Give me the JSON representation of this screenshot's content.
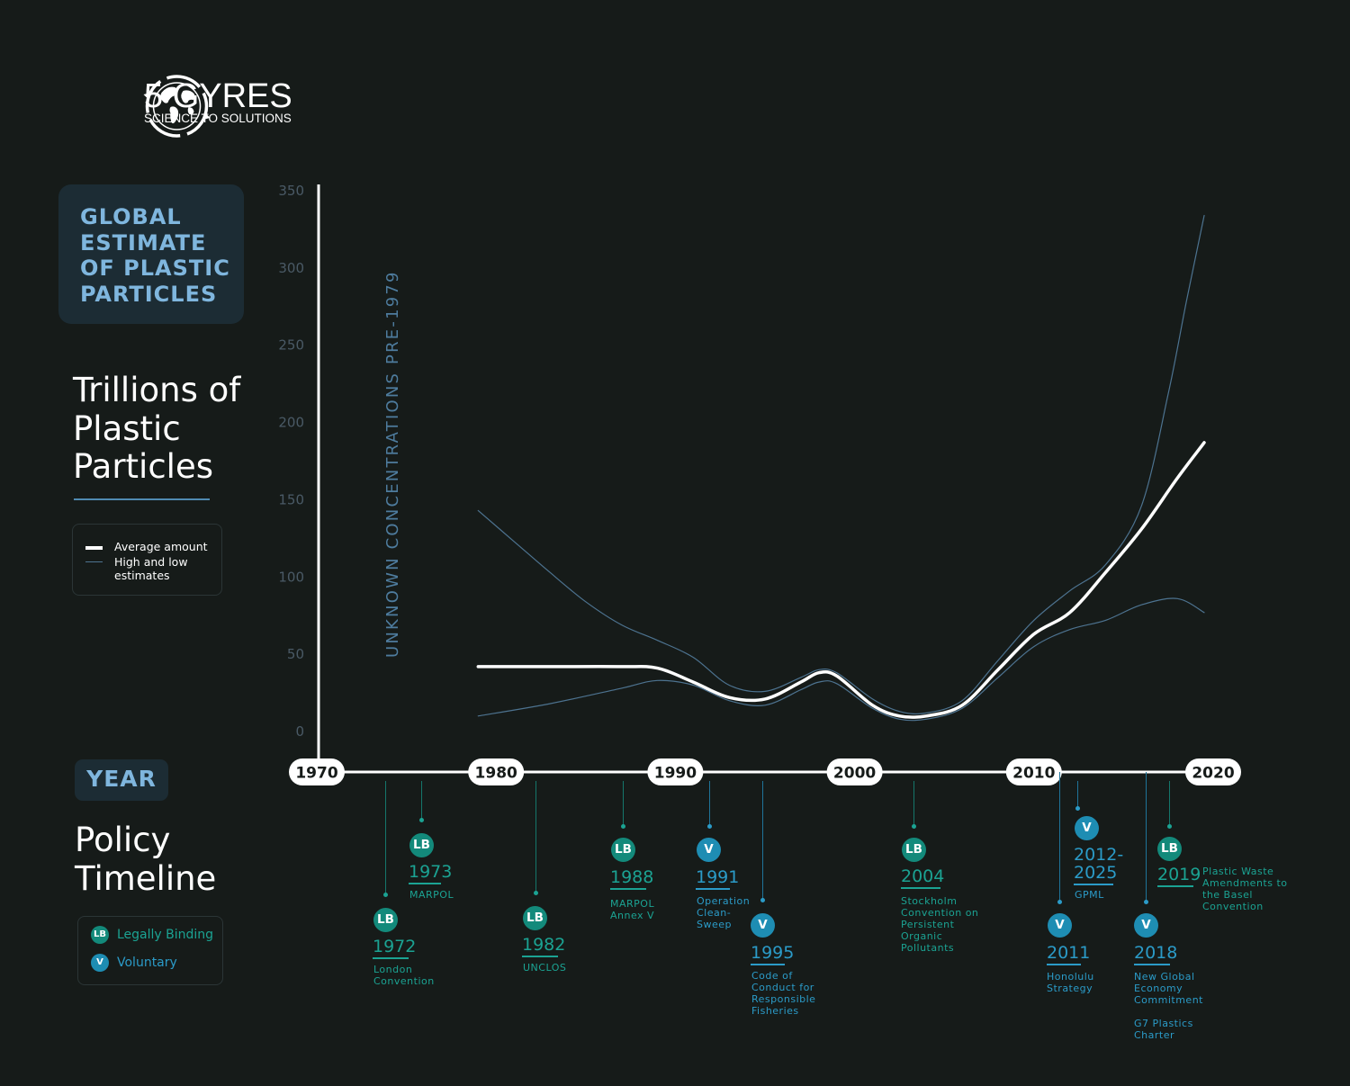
{
  "logo": {
    "icon": "globe-arrows-icon",
    "name": "5 GYRES",
    "tagline": "SCIENCE TO SOLUTIONS"
  },
  "sidebar": {
    "estimate_title": "GLOBAL ESTIMATE OF PLASTIC PARTICLES",
    "units_title": "Trillions of Plastic Particles",
    "year_label": "YEAR",
    "policy_title": "Policy Timeline",
    "chart_legend": {
      "average": "Average amount",
      "high_low": "High and low estimates"
    },
    "policy_legend": [
      {
        "badge": "LB",
        "label": "Legally Binding",
        "color": "#1ba393"
      },
      {
        "badge": "V",
        "label": "Voluntary",
        "color": "#2b9bc8"
      }
    ]
  },
  "chart_data": {
    "type": "line",
    "title": "GLOBAL ESTIMATE OF PLASTIC PARTICLES",
    "ylabel": "Trillions of Plastic Particles",
    "xlabel": "YEAR",
    "xlim": [
      1970,
      2020
    ],
    "ylim": [
      0,
      350
    ],
    "y_ticks": [
      0,
      50,
      100,
      150,
      200,
      250,
      300,
      350
    ],
    "x_ticks": [
      1970,
      1980,
      1990,
      2000,
      2010,
      2020
    ],
    "annotation": "UNKNOWN CONCENTRATIONS PRE-1979",
    "legend_position": "left",
    "grid": false,
    "series": [
      {
        "name": "Average amount",
        "role": "average",
        "color": "#ffffff",
        "x": [
          1979,
          1983,
          1987,
          1989,
          1991,
          1993,
          1995,
          1997,
          1998,
          1999,
          2001,
          2002.5,
          2004,
          2006,
          2008,
          2010,
          2012,
          2014,
          2016,
          2018,
          2019.5
        ],
        "y": [
          42,
          42,
          42,
          41,
          32,
          22,
          21,
          32,
          38,
          36,
          17,
          10,
          10,
          17,
          40,
          63,
          77,
          103,
          131,
          164,
          187
        ]
      },
      {
        "name": "High and low estimates",
        "role": "high",
        "color": "#4d7390",
        "x": [
          1979,
          1981,
          1983,
          1985,
          1987,
          1989,
          1991,
          1993,
          1995,
          1997,
          1998,
          1999,
          2001,
          2002.5,
          2004,
          2006,
          2008,
          2010,
          2012,
          2014,
          2016,
          2017.5,
          2018.5,
          2019.5
        ],
        "y": [
          143,
          123,
          103,
          84,
          69,
          59,
          48,
          30,
          26,
          35,
          40,
          38,
          21,
          13,
          12,
          20,
          46,
          72,
          91,
          108,
          146,
          219,
          278,
          334
        ]
      },
      {
        "name": "High and low estimates",
        "role": "low",
        "color": "#4d7390",
        "x": [
          1979,
          1983,
          1987,
          1989,
          1991,
          1993,
          1995,
          1997,
          1998,
          1999,
          2001,
          2002.5,
          2004,
          2006,
          2008,
          2010,
          2012,
          2014,
          2016,
          2018,
          2019.5
        ],
        "y": [
          10,
          18,
          28,
          33,
          30,
          20,
          17,
          27,
          32,
          31,
          15,
          8,
          8,
          15,
          35,
          55,
          66,
          72,
          82,
          86,
          77
        ]
      }
    ]
  },
  "policies": [
    {
      "year": "1972",
      "type": "LB",
      "desc": "London\nConvention"
    },
    {
      "year": "1973",
      "type": "LB",
      "desc": "MARPOL"
    },
    {
      "year": "1982",
      "type": "LB",
      "desc": "UNCLOS"
    },
    {
      "year": "1988",
      "type": "LB",
      "desc": "MARPOL\nAnnex V"
    },
    {
      "year": "1991",
      "type": "V",
      "desc": "Operation\nClean-\nSweep"
    },
    {
      "year": "1995",
      "type": "V",
      "desc": "Code of\nConduct for\nResponsible\nFisheries"
    },
    {
      "year": "2004",
      "type": "LB",
      "desc": "Stockholm\nConvention on\nPersistent\nOrganic\nPollutants"
    },
    {
      "year": "2011",
      "type": "V",
      "desc": "Honolulu\nStrategy"
    },
    {
      "year": "2012-\n2025",
      "type": "V",
      "desc": "GPML"
    },
    {
      "year": "2018",
      "type": "V",
      "desc": "New Global\nEconomy\nCommitment\n\nG7 Plastics\nCharter"
    },
    {
      "year": "2019",
      "type": "LB",
      "desc": "Plastic Waste\nAmendments to\nthe Basel\nConvention"
    }
  ]
}
